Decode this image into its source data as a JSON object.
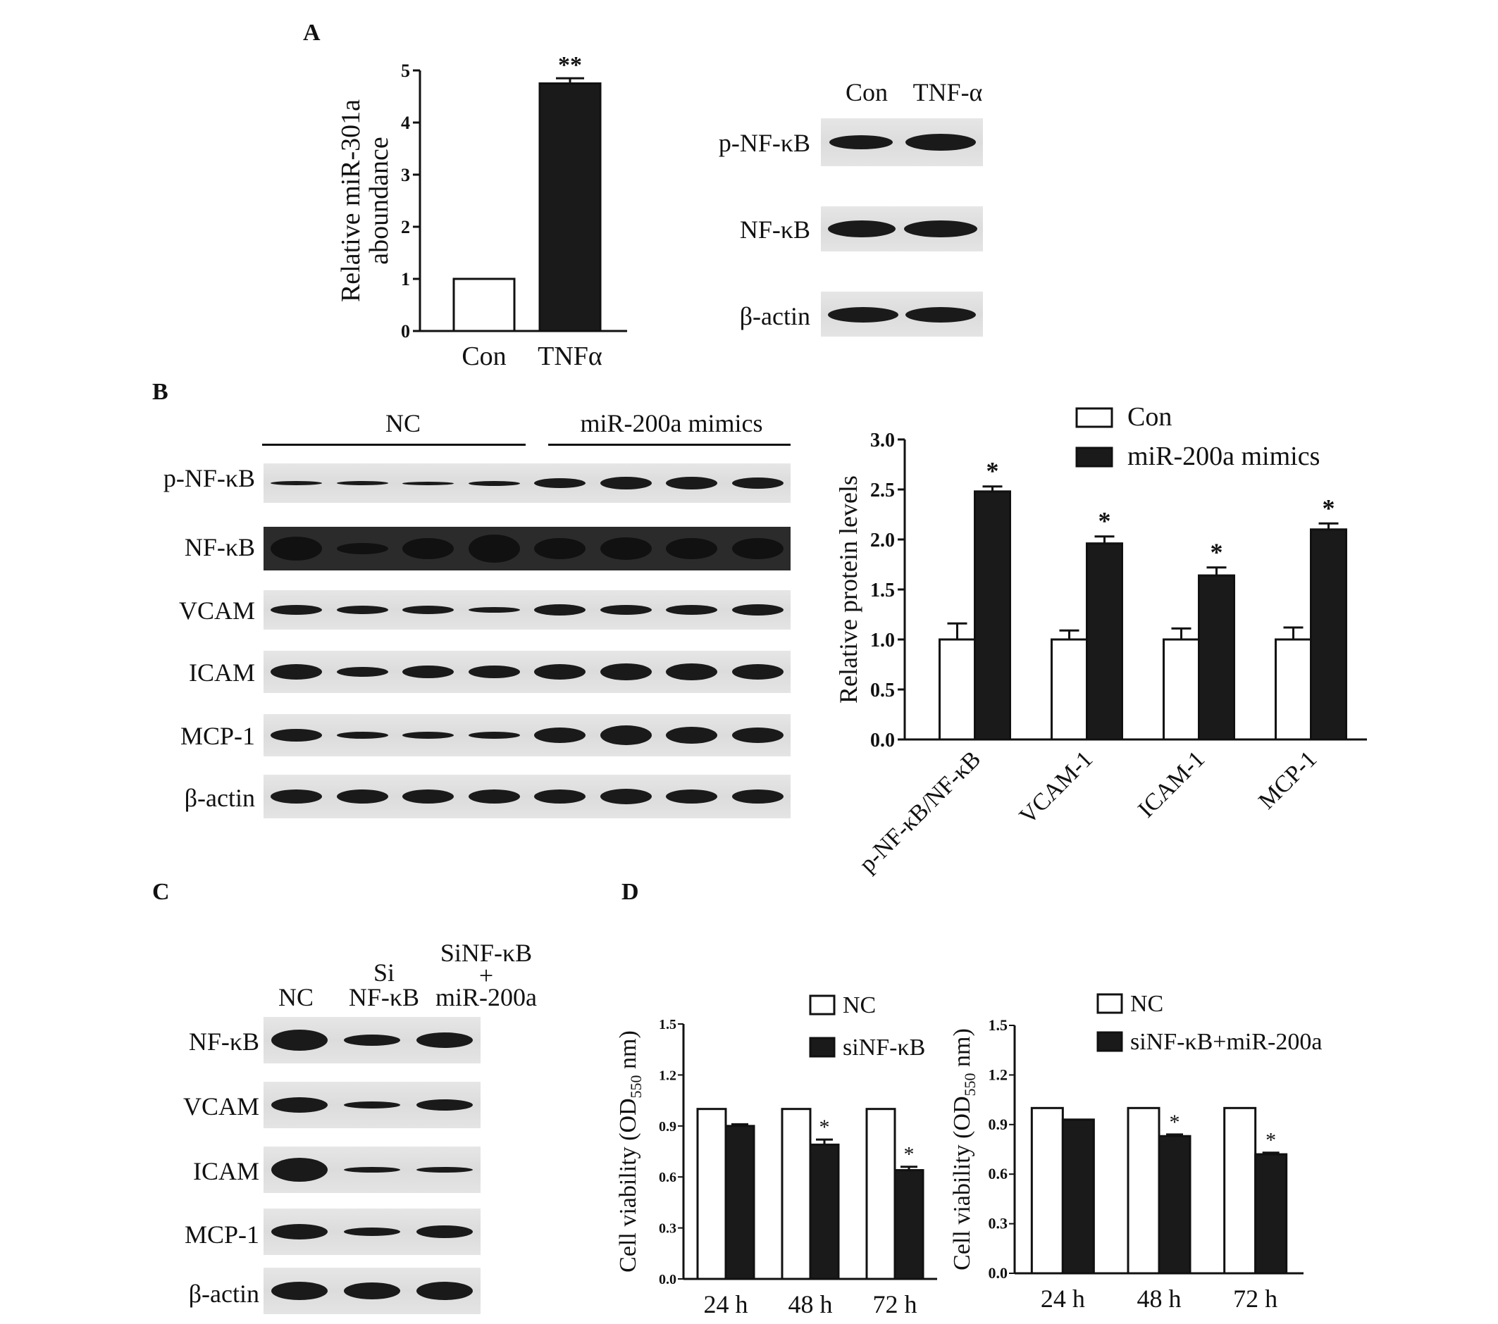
{
  "panels": {
    "A": {
      "letter": "A"
    },
    "B": {
      "letter": "B"
    },
    "C": {
      "letter": "C"
    },
    "D": {
      "letter": "D"
    }
  },
  "blotA": {
    "lanes": [
      "Con",
      "TNF-α"
    ],
    "rows": [
      "p-NF-κB",
      "NF-κB",
      "β-actin"
    ]
  },
  "blotB": {
    "groups": [
      "NC",
      "miR-200a mimics"
    ],
    "rows": [
      "p-NF-κB",
      "NF-κB",
      "VCAM",
      "ICAM",
      "MCP-1",
      "β-actin"
    ]
  },
  "blotC": {
    "lanes": [
      "NC",
      "Si",
      "NF-κB",
      "SiNF-κB",
      "+",
      "miR-200a"
    ],
    "rows": [
      "NF-κB",
      "VCAM",
      "ICAM",
      "MCP-1",
      "β-actin"
    ]
  },
  "chart_data": [
    {
      "id": "A",
      "type": "bar",
      "categories": [
        "Con",
        "TNFα"
      ],
      "values": [
        1.0,
        4.75
      ],
      "errors": [
        0,
        0.1
      ],
      "annotations": [
        "",
        "**"
      ],
      "ylabel": [
        "Relative miR-301a",
        "aboundance"
      ],
      "ylim": [
        0,
        5
      ],
      "yticks": [
        "0",
        "1",
        "2",
        "3",
        "4",
        "5"
      ],
      "colors": [
        "#ffffff",
        "#1a1a1a"
      ]
    },
    {
      "id": "B",
      "type": "bar",
      "categories": [
        "p-NF-κB/NF-κB",
        "VCAM-1",
        "ICAM-1",
        "MCP-1"
      ],
      "series": [
        {
          "name": "Con",
          "values": [
            1.0,
            1.0,
            1.0,
            1.0
          ],
          "errors": [
            0.16,
            0.09,
            0.11,
            0.12
          ],
          "color": "#ffffff"
        },
        {
          "name": "miR-200a mimics",
          "values": [
            2.48,
            1.96,
            1.64,
            2.1
          ],
          "errors": [
            0.05,
            0.07,
            0.08,
            0.06
          ],
          "color": "#1a1a1a"
        }
      ],
      "annotations": [
        "*",
        "*",
        "*",
        "*"
      ],
      "ylabel": "Relative protein levels",
      "ylim": [
        0,
        3.0
      ],
      "yticks": [
        "0.0",
        "0.5",
        "1.0",
        "1.5",
        "2.0",
        "2.5",
        "3.0"
      ],
      "legend": "top-right"
    },
    {
      "id": "D1",
      "type": "bar",
      "categories": [
        "24 h",
        "48 h",
        "72 h"
      ],
      "series": [
        {
          "name": "NC",
          "values": [
            1.0,
            1.0,
            1.0
          ],
          "errors": [
            0,
            0,
            0
          ],
          "color": "#ffffff"
        },
        {
          "name": "siNF-κB",
          "values": [
            0.9,
            0.79,
            0.64
          ],
          "errors": [
            0.01,
            0.03,
            0.02
          ],
          "color": "#1a1a1a"
        }
      ],
      "annotations": [
        "",
        "*",
        "*"
      ],
      "ylabel": {
        "main": "Cell viability (OD",
        "sub": "550",
        "tail": " nm)"
      },
      "ylim": [
        0,
        1.5
      ],
      "yticks": [
        "0.0",
        "0.3",
        "0.6",
        "0.9",
        "1.2",
        "1.5"
      ],
      "legend": "top-right"
    },
    {
      "id": "D2",
      "type": "bar",
      "categories": [
        "24 h",
        "48 h",
        "72 h"
      ],
      "series": [
        {
          "name": "NC",
          "values": [
            1.0,
            1.0,
            1.0
          ],
          "errors": [
            0,
            0,
            0
          ],
          "color": "#ffffff"
        },
        {
          "name": "siNF-κB+miR-200a",
          "values": [
            0.93,
            0.83,
            0.72
          ],
          "errors": [
            0,
            0.01,
            0.01
          ],
          "color": "#1a1a1a"
        }
      ],
      "annotations": [
        "",
        "*",
        "*"
      ],
      "ylabel": {
        "main": "Cell viability (OD",
        "sub": "550",
        "tail": " nm)"
      },
      "ylim": [
        0,
        1.5
      ],
      "yticks": [
        "0.0",
        "0.3",
        "0.6",
        "0.9",
        "1.2",
        "1.5"
      ],
      "legend": "top-right"
    }
  ]
}
